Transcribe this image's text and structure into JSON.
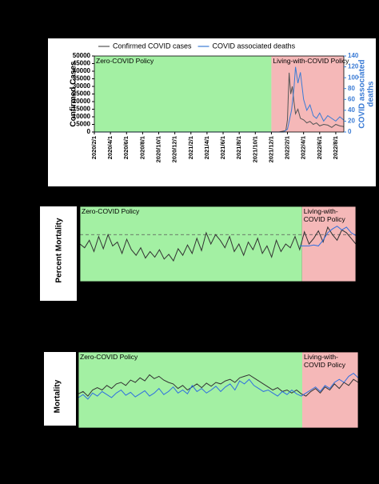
{
  "chart_data": [
    {
      "type": "line",
      "legend": "top",
      "ylabel": "Confirmed Cases",
      "y2label": "COVID associated deaths",
      "xlim": [
        0,
        31
      ],
      "xticks": [
        {
          "value": 0,
          "label": "2020/2/1"
        },
        {
          "value": 2,
          "label": "2020/4/1"
        },
        {
          "value": 4,
          "label": "2020/6/1"
        },
        {
          "value": 6,
          "label": "2020/8/1"
        },
        {
          "value": 8,
          "label": "2020/10/1"
        },
        {
          "value": 10,
          "label": "2020/12/1"
        },
        {
          "value": 12,
          "label": "2021/2/1"
        },
        {
          "value": 14,
          "label": "2021/4/1"
        },
        {
          "value": 16,
          "label": "2021/6/1"
        },
        {
          "value": 18,
          "label": "2021/8/1"
        },
        {
          "value": 20,
          "label": "2021/10/1"
        },
        {
          "value": 22,
          "label": "2021/12/1"
        },
        {
          "value": 24,
          "label": "2022/2/1"
        },
        {
          "value": 26,
          "label": "2022/4/1"
        },
        {
          "value": 28,
          "label": "2022/6/1"
        },
        {
          "value": 30,
          "label": "2022/8/1"
        }
      ],
      "ylim": [
        0,
        50000
      ],
      "yticks": [
        0,
        5000,
        10000,
        15000,
        20000,
        25000,
        30000,
        35000,
        40000,
        45000,
        50000
      ],
      "y2lim": [
        0,
        140
      ],
      "y2ticks": [
        0,
        20,
        40,
        60,
        80,
        100,
        120,
        140
      ],
      "regions": [
        {
          "label": "Zero-COVID Policy",
          "from": 0,
          "to": 22,
          "color": "#a3f0a3"
        },
        {
          "label": "Living-with-COVID Policy",
          "from": 22,
          "to": 31,
          "color": "#f5b8b8"
        }
      ],
      "series": [
        {
          "name": "Confirmed COVID cases",
          "color": "#555555",
          "x": [
            0,
            22,
            23,
            23.8,
            24,
            24.2,
            24.4,
            24.6,
            24.8,
            25,
            25.3,
            25.6,
            26,
            26.4,
            26.8,
            27.2,
            27.6,
            28,
            28.5,
            29,
            29.5,
            30,
            30.5,
            31
          ],
          "values": [
            0,
            0,
            50,
            1000,
            8000,
            39000,
            25000,
            30000,
            20000,
            12000,
            15000,
            9000,
            8000,
            6000,
            7000,
            5000,
            6000,
            4000,
            5000,
            4500,
            3000,
            5000,
            4000,
            3500
          ]
        },
        {
          "name": "COVID associated deaths",
          "color": "#3a7bd5",
          "axis": "y2",
          "x": [
            0,
            23.5,
            24,
            24.5,
            24.8,
            25,
            25.3,
            25.6,
            26,
            26.4,
            26.8,
            27.2,
            27.6,
            28,
            28.5,
            29,
            29.5,
            30,
            30.5,
            31
          ],
          "values": [
            0,
            0,
            5,
            40,
            80,
            120,
            90,
            110,
            60,
            40,
            50,
            30,
            25,
            35,
            20,
            30,
            25,
            20,
            28,
            22
          ]
        }
      ]
    },
    {
      "type": "line",
      "ylabel": "Percent Mortality",
      "xlim": [
        0,
        59
      ],
      "ylim": [
        1,
        9
      ],
      "hline": 6.0,
      "regions": [
        {
          "label": "Zero-COVID Policy",
          "from": 0,
          "to": 47.5,
          "color": "#a3f0a3"
        },
        {
          "label": "Living-with-COVID Policy",
          "from": 47.5,
          "to": 59,
          "color": "#f5b8b8"
        }
      ],
      "series": [
        {
          "color": "#333333",
          "x": [
            0,
            1,
            2,
            3,
            4,
            5,
            6,
            7,
            8,
            9,
            10,
            11,
            12,
            13,
            14,
            15,
            16,
            17,
            18,
            19,
            20,
            21,
            22,
            23,
            24,
            25,
            26,
            27,
            28,
            29,
            30,
            31,
            32,
            33,
            34,
            35,
            36,
            37,
            38,
            39,
            40,
            41,
            42,
            43,
            44,
            45,
            46,
            47,
            48,
            49,
            50,
            51,
            52,
            53,
            54,
            55,
            56,
            57,
            58,
            59
          ],
          "values": [
            5.0,
            4.6,
            5.4,
            4.2,
            5.8,
            4.5,
            6.0,
            4.8,
            5.2,
            4.0,
            5.5,
            4.4,
            3.8,
            4.6,
            3.5,
            4.2,
            3.6,
            4.4,
            3.4,
            3.9,
            3.2,
            4.5,
            3.8,
            4.9,
            4.0,
            5.6,
            4.3,
            6.2,
            5.0,
            6.0,
            5.4,
            4.6,
            5.8,
            4.2,
            5.0,
            3.8,
            5.2,
            4.4,
            5.6,
            4.0,
            4.8,
            3.6,
            5.4,
            4.2,
            5.0,
            4.6,
            5.8,
            4.4,
            6.3,
            5.0,
            5.6,
            6.4,
            5.2,
            6.8,
            6.0,
            5.4,
            6.5,
            6.2,
            5.6,
            5.0
          ]
        },
        {
          "color": "#2f6fe0",
          "x": [
            47,
            48,
            49,
            50,
            51,
            52,
            53,
            54,
            55,
            56,
            57,
            58,
            59
          ],
          "values": [
            4.8,
            4.8,
            4.8,
            4.9,
            4.8,
            5.4,
            6.2,
            6.6,
            6.9,
            6.5,
            6.8,
            6.2,
            5.9
          ]
        }
      ]
    },
    {
      "type": "line",
      "ylabel": "Mortality",
      "xlim": [
        0,
        59
      ],
      "ylim": [
        0,
        10
      ],
      "regions": [
        {
          "label": "Zero-COVID Policy",
          "from": 0,
          "to": 47.2,
          "color": "#a3f0a3"
        },
        {
          "label": "Living-with-COVID Policy",
          "from": 47.2,
          "to": 59,
          "color": "#f5b8b8"
        }
      ],
      "series": [
        {
          "color": "#333333",
          "x": [
            0,
            1,
            2,
            3,
            4,
            5,
            6,
            7,
            8,
            9,
            10,
            11,
            12,
            13,
            14,
            15,
            16,
            17,
            18,
            19,
            20,
            21,
            22,
            23,
            24,
            25,
            26,
            27,
            28,
            29,
            30,
            31,
            32,
            33,
            34,
            35,
            36,
            37,
            38,
            39,
            40,
            41,
            42,
            43,
            44,
            45,
            46,
            47,
            48,
            49,
            50,
            51,
            52,
            53,
            54,
            55,
            56,
            57,
            58,
            59
          ],
          "values": [
            4.5,
            4.8,
            4.2,
            5.0,
            5.3,
            5.0,
            5.6,
            5.2,
            5.8,
            6.0,
            5.6,
            6.3,
            6.0,
            6.6,
            6.2,
            7.0,
            6.5,
            6.8,
            6.3,
            6.0,
            5.8,
            5.2,
            5.6,
            5.0,
            5.4,
            5.8,
            5.3,
            5.9,
            5.5,
            6.0,
            5.8,
            6.2,
            6.4,
            6.0,
            6.6,
            6.8,
            7.0,
            6.6,
            6.2,
            5.8,
            5.4,
            5.0,
            5.3,
            4.8,
            5.0,
            4.6,
            5.0,
            4.5,
            4.2,
            4.8,
            5.2,
            4.6,
            5.4,
            5.0,
            5.8,
            5.2,
            6.0,
            5.6,
            6.4,
            6.0
          ]
        },
        {
          "color": "#2f6fe0",
          "x": [
            0,
            1,
            2,
            3,
            4,
            5,
            6,
            7,
            8,
            9,
            10,
            11,
            12,
            13,
            14,
            15,
            16,
            17,
            18,
            19,
            20,
            21,
            22,
            23,
            24,
            25,
            26,
            27,
            28,
            29,
            30,
            31,
            32,
            33,
            34,
            35,
            36,
            37,
            38,
            39,
            40,
            41,
            42,
            43,
            44,
            45,
            46,
            47,
            48,
            49,
            50,
            51,
            52,
            53,
            54,
            55,
            56,
            57,
            58,
            59
          ],
          "values": [
            4.0,
            4.4,
            3.8,
            4.6,
            4.2,
            4.8,
            4.4,
            4.0,
            4.6,
            5.0,
            4.3,
            4.7,
            4.1,
            4.5,
            4.9,
            4.2,
            4.6,
            5.2,
            4.4,
            4.8,
            5.4,
            4.6,
            5.0,
            4.5,
            5.6,
            4.8,
            5.2,
            4.6,
            5.0,
            5.5,
            4.8,
            5.4,
            5.8,
            5.0,
            6.2,
            5.8,
            6.4,
            5.6,
            5.2,
            4.8,
            5.0,
            4.6,
            4.2,
            4.8,
            4.4,
            5.0,
            4.5,
            4.2,
            4.6,
            5.0,
            5.4,
            4.8,
            5.6,
            5.2,
            6.0,
            6.4,
            6.0,
            6.8,
            7.2,
            6.6
          ]
        }
      ]
    }
  ]
}
